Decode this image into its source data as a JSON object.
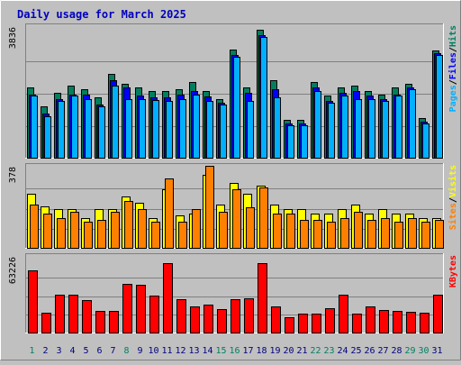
{
  "title": "Daily usage for March 2025",
  "colors": {
    "background": "#c0c0c0",
    "plot_bg": "#c0c0c0",
    "title": "#0000c0",
    "hits": "#007f5f",
    "files": "#0000ff",
    "pages": "#00b0ff",
    "visits": "#ffff00",
    "sites": "#ff8000",
    "kbytes": "#ff0000",
    "weekend_day": "#00805f",
    "weekday": "#000080",
    "axis_label": "#000000"
  },
  "chart_data": [
    {
      "type": "bar",
      "panel": "top",
      "ymax_label": "3836",
      "ylim": [
        0,
        3836
      ],
      "grid": true,
      "legend": [
        {
          "text": "Pages",
          "color": "#00b0ff"
        },
        {
          "text": "/",
          "color": "#000000"
        },
        {
          "text": "Files",
          "color": "#0000ff"
        },
        {
          "text": "/",
          "color": "#000000"
        },
        {
          "text": "Hits",
          "color": "#007f5f"
        }
      ],
      "categories": [
        "1",
        "2",
        "3",
        "4",
        "5",
        "6",
        "7",
        "8",
        "9",
        "10",
        "11",
        "12",
        "13",
        "14",
        "15",
        "16",
        "17",
        "18",
        "19",
        "20",
        "21",
        "22",
        "23",
        "24",
        "25",
        "26",
        "27",
        "28",
        "29",
        "30",
        "31"
      ],
      "series": [
        {
          "name": "Hits",
          "color": "#007f5f",
          "values": [
            2050,
            1500,
            1900,
            2100,
            2000,
            1750,
            2450,
            2150,
            2050,
            1950,
            1950,
            2000,
            2200,
            1950,
            1700,
            3150,
            2050,
            3730,
            2250,
            1100,
            1100,
            2200,
            1800,
            2050,
            2100,
            1950,
            1850,
            2050,
            2150,
            1150,
            3130
          ]
        },
        {
          "name": "Files",
          "color": "#0000ff",
          "values": [
            1850,
            1300,
            1700,
            1850,
            1850,
            1550,
            2250,
            2050,
            1800,
            1750,
            1750,
            1850,
            1950,
            1780,
            1600,
            3000,
            1900,
            3580,
            2000,
            1000,
            1000,
            2050,
            1650,
            1900,
            1950,
            1800,
            1700,
            1850,
            2050,
            1050,
            3050
          ]
        },
        {
          "name": "Pages",
          "color": "#00b0ff",
          "values": [
            1800,
            1200,
            1650,
            1800,
            1700,
            1500,
            2100,
            1700,
            1700,
            1680,
            1650,
            1700,
            1850,
            1650,
            1550,
            2950,
            1650,
            3530,
            1770,
            950,
            950,
            1950,
            1600,
            1800,
            1700,
            1700,
            1650,
            1800,
            2000,
            1000,
            3000
          ]
        }
      ]
    },
    {
      "type": "bar",
      "panel": "middle",
      "ymax_label": "378",
      "ylim": [
        0,
        378
      ],
      "grid": true,
      "legend": [
        {
          "text": "Sites",
          "color": "#ff8000"
        },
        {
          "text": "/",
          "color": "#000000"
        },
        {
          "text": "Visits",
          "color": "#ffff00"
        }
      ],
      "categories": [
        "1",
        "2",
        "3",
        "4",
        "5",
        "6",
        "7",
        "8",
        "9",
        "10",
        "11",
        "12",
        "13",
        "14",
        "15",
        "16",
        "17",
        "18",
        "19",
        "20",
        "21",
        "22",
        "23",
        "24",
        "25",
        "26",
        "27",
        "28",
        "29",
        "30",
        "31"
      ],
      "series": [
        {
          "name": "Visits",
          "color": "#ffff00",
          "values": [
            248,
            189,
            178,
            178,
            139,
            178,
            178,
            238,
            208,
            139,
            268,
            148,
            159,
            338,
            198,
            298,
            248,
            288,
            198,
            178,
            178,
            159,
            159,
            178,
            198,
            159,
            178,
            159,
            159,
            139,
            139
          ]
        },
        {
          "name": "Sites",
          "color": "#ff8000",
          "values": [
            198,
            159,
            139,
            168,
            119,
            129,
            168,
            218,
            178,
            119,
            318,
            119,
            178,
            378,
            168,
            268,
            188,
            278,
            159,
            159,
            129,
            129,
            119,
            139,
            168,
            129,
            139,
            119,
            139,
            119,
            129
          ]
        }
      ]
    },
    {
      "type": "bar",
      "panel": "bottom",
      "ymax_label": "63226",
      "ylim": [
        0,
        63226
      ],
      "grid": true,
      "legend": [
        {
          "text": "KBytes",
          "color": "#ff0000"
        }
      ],
      "categories": [
        "1",
        "2",
        "3",
        "4",
        "5",
        "6",
        "7",
        "8",
        "9",
        "10",
        "11",
        "12",
        "13",
        "14",
        "15",
        "16",
        "17",
        "18",
        "19",
        "20",
        "21",
        "22",
        "23",
        "24",
        "25",
        "26",
        "27",
        "28",
        "29",
        "30",
        "31"
      ],
      "series": [
        {
          "name": "KBytes",
          "color": "#ff0000",
          "values": [
            51000,
            16500,
            31000,
            31000,
            26500,
            17700,
            17900,
            40500,
            39600,
            30800,
            57500,
            27500,
            21900,
            23200,
            19200,
            27500,
            28500,
            57500,
            21900,
            12900,
            15500,
            15700,
            20200,
            31000,
            15500,
            21900,
            18400,
            18200,
            17100,
            16100,
            31500
          ]
        }
      ]
    }
  ],
  "x_axis": {
    "labels": [
      "1",
      "2",
      "3",
      "4",
      "5",
      "6",
      "7",
      "8",
      "9",
      "10",
      "11",
      "12",
      "13",
      "14",
      "15",
      "16",
      "17",
      "18",
      "19",
      "20",
      "21",
      "22",
      "23",
      "24",
      "25",
      "26",
      "27",
      "28",
      "29",
      "30",
      "31"
    ],
    "weekend_days": [
      "1",
      "8",
      "15",
      "16",
      "22",
      "23",
      "29",
      "30"
    ]
  }
}
